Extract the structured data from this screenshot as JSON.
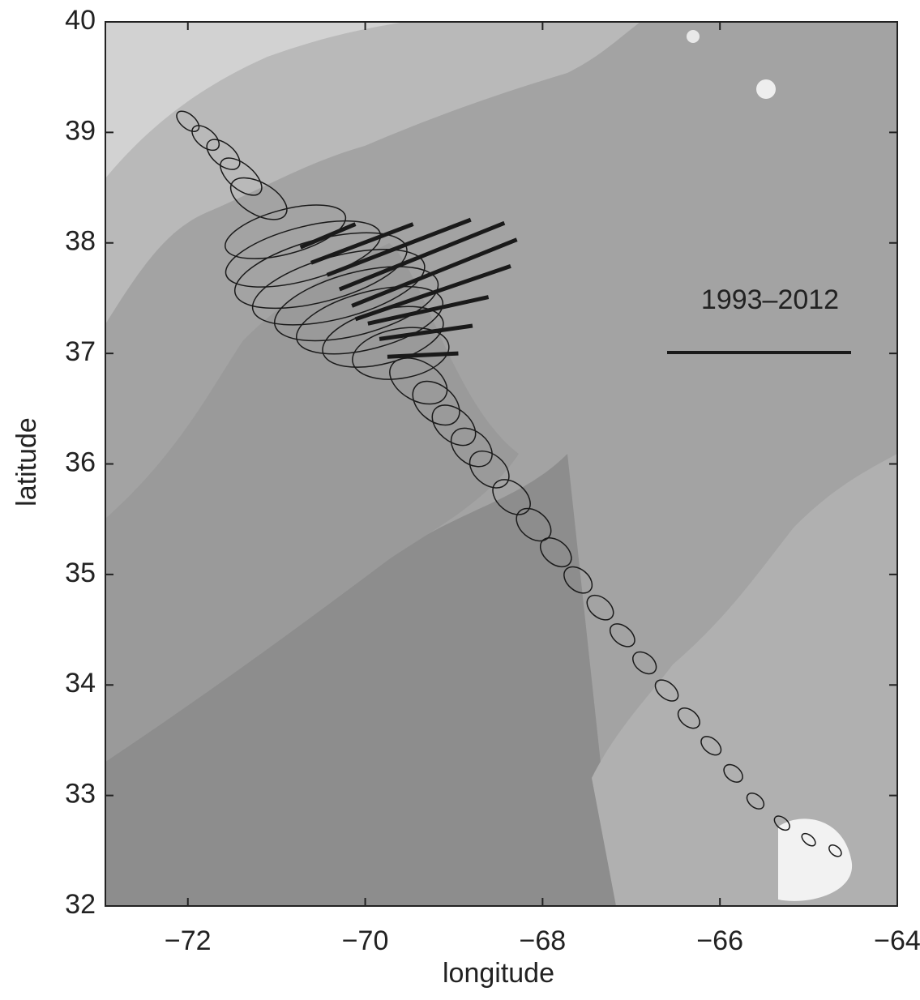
{
  "chart_data": {
    "type": "ellipse",
    "x_label": "longitude",
    "y_label": "latitude",
    "legend_label": "1993–2012",
    "xlim": [
      -72.93,
      -64
    ],
    "ylim": [
      32,
      40
    ],
    "xticks": [
      {
        "value": -72,
        "label": "−72"
      },
      {
        "value": -70,
        "label": "−70"
      },
      {
        "value": -68,
        "label": "−68"
      },
      {
        "value": -66,
        "label": "−66"
      },
      {
        "value": -64,
        "label": "−64"
      }
    ],
    "yticks": [
      32,
      33,
      34,
      35,
      36,
      37,
      38,
      39,
      40
    ],
    "color": "#1a1a1a",
    "ellipses": {
      "x": [
        -72.0,
        -71.8,
        -71.6,
        -71.4,
        -71.2,
        -70.9,
        -70.7,
        -70.5,
        -70.3,
        -70.1,
        -69.95,
        -69.8,
        -69.6,
        -69.4,
        -69.2,
        -69.0,
        -68.8,
        -68.6,
        -68.35,
        -68.1,
        -67.85,
        -67.6,
        -67.35,
        -67.1,
        -66.85,
        -66.6,
        -66.35,
        -66.1,
        -65.85,
        -65.6,
        -65.3,
        -65.0,
        -64.7
      ],
      "y": [
        39.1,
        38.95,
        38.8,
        38.6,
        38.4,
        38.1,
        37.9,
        37.75,
        37.6,
        37.45,
        37.3,
        37.15,
        37.0,
        36.75,
        36.55,
        36.35,
        36.15,
        35.95,
        35.7,
        35.45,
        35.2,
        34.95,
        34.7,
        34.45,
        34.2,
        33.95,
        33.7,
        33.45,
        33.2,
        32.95,
        32.75,
        32.6,
        32.5
      ],
      "a": [
        0.15,
        0.18,
        0.22,
        0.28,
        0.35,
        0.7,
        0.9,
        1.0,
        1.0,
        0.95,
        0.85,
        0.7,
        0.55,
        0.35,
        0.3,
        0.28,
        0.26,
        0.25,
        0.24,
        0.22,
        0.2,
        0.18,
        0.17,
        0.16,
        0.15,
        0.15,
        0.14,
        0.13,
        0.12,
        0.11,
        0.1,
        0.09,
        0.08
      ],
      "b": [
        0.08,
        0.1,
        0.12,
        0.14,
        0.18,
        0.25,
        0.3,
        0.35,
        0.35,
        0.35,
        0.32,
        0.3,
        0.28,
        0.22,
        0.2,
        0.18,
        0.18,
        0.17,
        0.16,
        0.15,
        0.13,
        0.12,
        0.11,
        0.1,
        0.1,
        0.09,
        0.09,
        0.08,
        0.08,
        0.07,
        0.06,
        0.05,
        0.05
      ],
      "angle": [
        -40,
        -40,
        -40,
        -40,
        -30,
        15,
        15,
        15,
        15,
        15,
        15,
        15,
        10,
        -30,
        -40,
        -40,
        -40,
        -40,
        -40,
        -40,
        -40,
        -40,
        -40,
        -40,
        -40,
        -40,
        -40,
        -40,
        -40,
        -40,
        -40,
        -40,
        -40
      ]
    },
    "trends": {
      "x0": [
        -70.73,
        -70.61,
        -70.43,
        -70.29,
        -70.15,
        -70.11,
        -69.97,
        -69.84,
        -69.75
      ],
      "y0": [
        37.96,
        37.82,
        37.71,
        37.58,
        37.43,
        37.31,
        37.27,
        37.13,
        36.97
      ],
      "x1": [
        -70.11,
        -69.46,
        -68.81,
        -68.43,
        -68.29,
        -68.36,
        -68.61,
        -68.79,
        -68.95
      ],
      "y1": [
        38.17,
        38.17,
        38.21,
        38.18,
        38.03,
        37.79,
        37.51,
        37.25,
        37.0
      ]
    }
  }
}
